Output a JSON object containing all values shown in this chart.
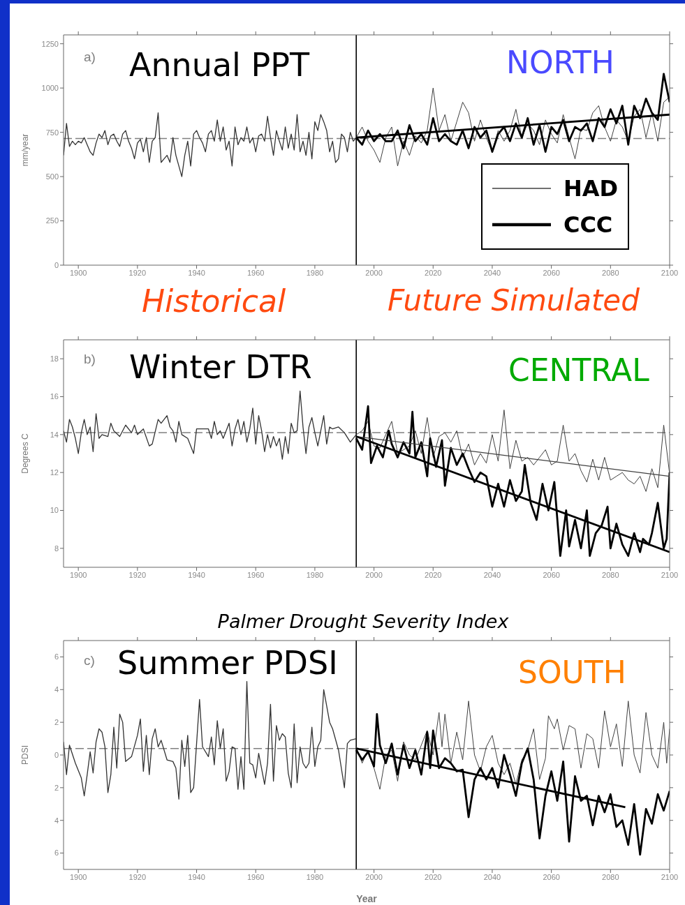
{
  "chart_data": [
    {
      "type": "line",
      "title": "Annual PPT",
      "ylabel": "mm/year",
      "annotations": [
        "a)",
        "NORTH",
        "Historical",
        "Future Simulated"
      ],
      "xlim": [
        1895,
        2100
      ],
      "xticks": [
        1900,
        1920,
        1940,
        1960,
        1980,
        2000,
        2020,
        2040,
        2060,
        2080,
        2100
      ],
      "ylim": [
        0,
        1300
      ],
      "yticks": [
        0,
        250,
        500,
        750,
        1000,
        1250
      ],
      "legend": "bottom right",
      "ref_lines": [
        {
          "axis": "y",
          "value": 715,
          "color": "#808080",
          "line_style": "dashed"
        },
        {
          "axis": "x",
          "value": 1994,
          "color": "#000000",
          "line_style": "solid"
        }
      ],
      "x": [
        1994,
        1996,
        1998,
        2000,
        2002,
        2004,
        2006,
        2008,
        2010,
        2012,
        2014,
        2016,
        2018,
        2020,
        2022,
        2024,
        2026,
        2028,
        2030,
        2032,
        2034,
        2036,
        2038,
        2040,
        2042,
        2044,
        2046,
        2048,
        2050,
        2052,
        2054,
        2056,
        2058,
        2060,
        2062,
        2064,
        2066,
        2068,
        2070,
        2072,
        2074,
        2076,
        2078,
        2080,
        2082,
        2084,
        2086,
        2088,
        2090,
        2092,
        2094,
        2096,
        2098,
        2100
      ],
      "series": [
        {
          "color": "#333333",
          "x": [
            1895,
            1896,
            1897,
            1898,
            1899,
            1900,
            1901,
            1902,
            1903,
            1904,
            1905,
            1906,
            1907,
            1908,
            1909,
            1910,
            1911,
            1912,
            1913,
            1914,
            1915,
            1916,
            1917,
            1918,
            1919,
            1920,
            1921,
            1922,
            1923,
            1924,
            1925,
            1926,
            1927,
            1928,
            1929,
            1930,
            1931,
            1932,
            1933,
            1934,
            1935,
            1936,
            1937,
            1938,
            1939,
            1940,
            1941,
            1942,
            1943,
            1944,
            1945,
            1946,
            1947,
            1948,
            1949,
            1950,
            1951,
            1952,
            1953,
            1954,
            1955,
            1956,
            1957,
            1958,
            1959,
            1960,
            1961,
            1962,
            1963,
            1964,
            1965,
            1966,
            1967,
            1968,
            1969,
            1970,
            1971,
            1972,
            1973,
            1974,
            1975,
            1976,
            1977,
            1978,
            1979,
            1980,
            1981,
            1982,
            1983,
            1984,
            1985,
            1986,
            1987,
            1988,
            1989,
            1990,
            1991,
            1992,
            1993,
            1994
          ],
          "values": [
            620,
            800,
            670,
            700,
            680,
            700,
            690,
            720,
            680,
            640,
            620,
            690,
            740,
            720,
            760,
            680,
            730,
            740,
            700,
            670,
            740,
            760,
            700,
            660,
            600,
            690,
            710,
            640,
            720,
            580,
            700,
            720,
            860,
            580,
            600,
            620,
            580,
            720,
            620,
            560,
            500,
            620,
            700,
            560,
            740,
            760,
            720,
            690,
            640,
            740,
            760,
            700,
            820,
            700,
            780,
            650,
            700,
            560,
            780,
            680,
            720,
            700,
            780,
            690,
            720,
            640,
            730,
            740,
            700,
            840,
            720,
            620,
            760,
            700,
            650,
            780,
            660,
            740,
            650,
            850,
            640,
            700,
            620,
            750,
            600,
            810,
            760,
            850,
            810,
            760,
            640,
            700,
            580,
            600,
            740,
            720,
            640,
            750,
            700,
            720
          ]
        },
        {
          "name": "HAD",
          "color": "#404040",
          "values": [
            720,
            780,
            700,
            650,
            580,
            720,
            780,
            560,
            700,
            620,
            730,
            690,
            760,
            1000,
            760,
            850,
            700,
            810,
            920,
            860,
            700,
            820,
            720,
            640,
            760,
            700,
            760,
            880,
            720,
            800,
            760,
            680,
            820,
            740,
            690,
            850,
            720,
            600,
            770,
            760,
            860,
            900,
            780,
            700,
            820,
            780,
            700,
            840,
            880,
            720,
            860,
            700,
            920,
            950
          ]
        },
        {
          "name": "CCC",
          "color": "#000000",
          "values": [
            720,
            680,
            760,
            700,
            740,
            700,
            700,
            760,
            660,
            790,
            700,
            740,
            680,
            830,
            700,
            740,
            700,
            680,
            760,
            660,
            780,
            720,
            760,
            640,
            740,
            780,
            700,
            800,
            720,
            830,
            680,
            790,
            640,
            780,
            740,
            820,
            700,
            780,
            760,
            800,
            700,
            830,
            780,
            880,
            800,
            900,
            680,
            900,
            830,
            940,
            860,
            820,
            1080,
            920
          ]
        },
        {
          "color": "#000000",
          "x": [
            1994,
            2100
          ],
          "values": [
            720,
            850
          ]
        }
      ]
    },
    {
      "type": "line",
      "title": "Winter DTR",
      "ylabel": "Degrees C",
      "annotations": [
        "b)",
        "CENTRAL"
      ],
      "xlim": [
        1895,
        2100
      ],
      "xticks": [
        1900,
        1920,
        1940,
        1960,
        1980,
        2000,
        2020,
        2040,
        2060,
        2080,
        2100
      ],
      "ylim": [
        7,
        19
      ],
      "yticks": [
        8,
        10,
        12,
        14,
        16,
        18
      ],
      "ref_lines": [
        {
          "axis": "y",
          "value": 14.1,
          "color": "#808080",
          "line_style": "dashed"
        },
        {
          "axis": "x",
          "value": 1994,
          "color": "#000000",
          "line_style": "solid"
        }
      ],
      "x": [
        1994,
        1996,
        1998,
        2000,
        2002,
        2004,
        2006,
        2008,
        2010,
        2012,
        2014,
        2016,
        2018,
        2020,
        2022,
        2024,
        2026,
        2028,
        2030,
        2032,
        2034,
        2036,
        2038,
        2040,
        2042,
        2044,
        2046,
        2048,
        2050,
        2052,
        2054,
        2056,
        2058,
        2060,
        2062,
        2064,
        2066,
        2068,
        2070,
        2072,
        2074,
        2076,
        2078,
        2080,
        2082,
        2084,
        2086,
        2088,
        2090,
        2092,
        2094,
        2096,
        2098,
        2100
      ],
      "series": [
        {
          "color": "#333333",
          "x": [
            1895,
            1896,
            1897,
            1898,
            1899,
            1900,
            1901,
            1902,
            1903,
            1904,
            1905,
            1906,
            1907,
            1908,
            1910,
            1911,
            1912,
            1914,
            1916,
            1918,
            1919,
            1920,
            1922,
            1924,
            1925,
            1927,
            1928,
            1930,
            1931,
            1932,
            1933,
            1934,
            1935,
            1937,
            1939,
            1940,
            1942,
            1944,
            1945,
            1946,
            1947,
            1948,
            1949,
            1950,
            1951,
            1952,
            1953,
            1954,
            1955,
            1956,
            1957,
            1958,
            1959,
            1960,
            1961,
            1962,
            1963,
            1964,
            1965,
            1966,
            1967,
            1968,
            1969,
            1970,
            1971,
            1972,
            1973,
            1974,
            1975,
            1976,
            1977,
            1978,
            1979,
            1980,
            1981,
            1982,
            1983,
            1984,
            1985,
            1986,
            1988,
            1990,
            1992,
            1994
          ],
          "values": [
            14.2,
            13.6,
            14.8,
            14.4,
            13.8,
            13.0,
            14.1,
            14.8,
            14.0,
            14.4,
            13.1,
            15.1,
            13.8,
            14.0,
            13.9,
            14.6,
            14.2,
            13.9,
            14.5,
            14.1,
            14.5,
            14.0,
            14.3,
            13.4,
            13.5,
            14.8,
            14.6,
            15.0,
            14.4,
            14.2,
            13.6,
            14.7,
            14.0,
            13.8,
            13.0,
            14.3,
            14.3,
            14.3,
            13.8,
            14.7,
            14.0,
            14.2,
            13.8,
            14.2,
            14.6,
            13.4,
            14.3,
            14.8,
            14.0,
            14.7,
            13.6,
            14.3,
            15.4,
            13.5,
            15.0,
            14.2,
            13.1,
            14.0,
            13.3,
            13.9,
            13.4,
            13.8,
            12.7,
            13.9,
            13.0,
            14.6,
            14.1,
            14.2,
            16.3,
            14.4,
            13.0,
            14.4,
            14.9,
            14.1,
            13.4,
            14.2,
            15.0,
            13.5,
            14.4,
            14.3,
            14.4,
            14.1,
            13.6,
            14.0
          ]
        },
        {
          "color": "#404040",
          "values": [
            14.0,
            14.2,
            14.7,
            13.4,
            13.3,
            14.0,
            14.7,
            13.0,
            13.2,
            13.4,
            14.2,
            13.0,
            14.9,
            12.8,
            13.9,
            14.1,
            13.6,
            14.2,
            12.8,
            13.5,
            12.4,
            13.0,
            12.5,
            14.0,
            12.6,
            15.3,
            12.2,
            13.7,
            12.6,
            12.8,
            12.4,
            12.8,
            13.2,
            12.4,
            12.6,
            14.5,
            12.6,
            13.0,
            12.1,
            11.5,
            12.7,
            11.6,
            12.8,
            11.6,
            11.8,
            12.0,
            11.6,
            11.4,
            11.8,
            11.0,
            12.2,
            11.2,
            14.5,
            11.9
          ]
        },
        {
          "color": "#000000",
          "x": [
            1994,
            1996,
            1998,
            1999,
            2001,
            2003,
            2005,
            2006,
            2008,
            2010,
            2012,
            2013,
            2014,
            2016,
            2018,
            2019,
            2021,
            2023,
            2024,
            2026,
            2028,
            2030,
            2032,
            2034,
            2036,
            2038,
            2040,
            2042,
            2044,
            2046,
            2048,
            2050,
            2051,
            2053,
            2055,
            2057,
            2059,
            2061,
            2063,
            2065,
            2066,
            2068,
            2070,
            2072,
            2073,
            2075,
            2077,
            2079,
            2080,
            2082,
            2084,
            2086,
            2088,
            2090,
            2091,
            2093,
            2094,
            2096,
            2098,
            2099,
            2100
          ],
          "values": [
            13.8,
            13.2,
            15.5,
            12.5,
            13.4,
            12.8,
            14.2,
            13.5,
            12.8,
            13.6,
            13.0,
            15.2,
            12.8,
            13.6,
            11.8,
            13.8,
            12.3,
            13.7,
            11.3,
            13.3,
            12.4,
            13.0,
            12.2,
            11.5,
            12.0,
            11.8,
            10.2,
            11.4,
            10.2,
            11.6,
            10.5,
            11.0,
            12.4,
            10.4,
            9.5,
            11.4,
            10.0,
            11.5,
            7.6,
            10.0,
            8.1,
            9.5,
            8.0,
            10.0,
            7.6,
            8.8,
            9.2,
            10.2,
            8.0,
            9.3,
            8.2,
            7.6,
            8.8,
            7.8,
            8.5,
            8.2,
            8.8,
            10.4,
            8.0,
            8.5,
            12.0
          ]
        },
        {
          "color": "#404040",
          "x": [
            1994,
            2100
          ],
          "values": [
            13.9,
            11.8
          ]
        },
        {
          "color": "#000000",
          "x": [
            1994,
            2100
          ],
          "values": [
            13.9,
            7.8
          ]
        }
      ]
    },
    {
      "type": "line",
      "title": "Summer PDSI",
      "subtitle": "Palmer Drought Severity Index",
      "xlabel": "Year",
      "ylabel": "PDSI",
      "annotations": [
        "c)",
        "SOUTH"
      ],
      "xlim": [
        1895,
        2100
      ],
      "xticks": [
        1900,
        1920,
        1940,
        1960,
        1980,
        2000,
        2020,
        2040,
        2060,
        2080,
        2100
      ],
      "ylim": [
        -7,
        7
      ],
      "yticks": [
        {
          "value": -6,
          "label": "6"
        },
        {
          "value": -4,
          "label": "4"
        },
        {
          "value": -2,
          "label": "2"
        },
        0,
        2,
        4,
        6
      ],
      "ref_lines": [
        {
          "axis": "y",
          "value": 0.4,
          "color": "#808080",
          "line_style": "dashed"
        },
        {
          "axis": "x",
          "value": 1994,
          "color": "#000000",
          "line_style": "solid"
        }
      ],
      "series": [
        {
          "color": "#333333",
          "x": [
            1895,
            1896,
            1897,
            1899,
            1901,
            1902,
            1903,
            1904,
            1905,
            1906,
            1907,
            1908,
            1909,
            1910,
            1911,
            1912,
            1913,
            1914,
            1915,
            1916,
            1918,
            1920,
            1921,
            1922,
            1923,
            1924,
            1925,
            1926,
            1927,
            1928,
            1930,
            1932,
            1933,
            1934,
            1935,
            1936,
            1937,
            1938,
            1939,
            1941,
            1942,
            1944,
            1945,
            1946,
            1947,
            1948,
            1949,
            1950,
            1951,
            1952,
            1953,
            1954,
            1955,
            1956,
            1957,
            1958,
            1959,
            1960,
            1961,
            1963,
            1964,
            1965,
            1966,
            1967,
            1968,
            1969,
            1970,
            1971,
            1972,
            1973,
            1974,
            1975,
            1976,
            1977,
            1978,
            1979,
            1980,
            1981,
            1982,
            1983,
            1984,
            1985,
            1986,
            1988,
            1990,
            1991,
            1992,
            1994
          ],
          "values": [
            0.8,
            -1.2,
            0.6,
            -0.5,
            -1.4,
            -2.5,
            -1.2,
            0.2,
            -1.1,
            0.8,
            1.6,
            1.4,
            0.5,
            -2.3,
            -1.2,
            1.7,
            -0.8,
            2.5,
            2.0,
            -0.4,
            -0.1,
            1.2,
            2.2,
            -1.0,
            1.2,
            -1.2,
            1.0,
            1.6,
            0.5,
            0.9,
            -0.3,
            -0.4,
            -0.8,
            -2.7,
            0.9,
            -0.7,
            1.2,
            -2.3,
            -2.0,
            3.4,
            0.5,
            -0.1,
            1.1,
            -0.6,
            2.1,
            0.4,
            1.6,
            -1.6,
            -1.0,
            0.5,
            0.4,
            -2.1,
            -0.1,
            -2.1,
            4.5,
            -0.5,
            -0.6,
            -1.4,
            0.1,
            -1.8,
            -0.5,
            3.1,
            -1.6,
            1.8,
            0.9,
            1.3,
            1.1,
            -1.1,
            -2.0,
            1.9,
            -1.7,
            0.5,
            -0.5,
            -0.8,
            -0.5,
            1.7,
            -0.7,
            0.5,
            0.9,
            4.0,
            3.0,
            2.0,
            1.6,
            0.3,
            -2.0,
            0.7,
            0.9,
            1.0
          ]
        },
        {
          "color": "#404040",
          "x": [
            1994,
            1996,
            1998,
            2000,
            2002,
            2004,
            2006,
            2008,
            2010,
            2012,
            2014,
            2016,
            2018,
            2020,
            2022,
            2023,
            2024,
            2026,
            2028,
            2030,
            2032,
            2034,
            2036,
            2038,
            2040,
            2042,
            2044,
            2046,
            2048,
            2050,
            2052,
            2054,
            2056,
            2058,
            2059,
            2061,
            2062,
            2064,
            2066,
            2068,
            2070,
            2072,
            2074,
            2076,
            2078,
            2080,
            2082,
            2084,
            2086,
            2088,
            2090,
            2092,
            2094,
            2096,
            2098,
            2099,
            2100
          ],
          "values": [
            0.5,
            -0.5,
            0.3,
            -0.8,
            -2.1,
            0.0,
            0.3,
            -1.6,
            0.8,
            0.0,
            -0.3,
            0.6,
            1.5,
            0.0,
            2.6,
            0.5,
            2.5,
            -0.5,
            1.4,
            -0.3,
            3.3,
            0.0,
            -1.0,
            0.5,
            1.2,
            -0.5,
            -1.2,
            -0.5,
            -1.8,
            -0.3,
            0.3,
            1.6,
            -1.5,
            -0.2,
            2.4,
            1.6,
            2.2,
            0.3,
            1.8,
            1.6,
            -0.8,
            1.3,
            1.0,
            -0.8,
            2.7,
            0.5,
            1.9,
            -0.7,
            3.3,
            0.0,
            -1.1,
            2.6,
            0.0,
            -0.8,
            2.0,
            -0.5,
            1.6
          ]
        },
        {
          "color": "#000000",
          "x": [
            1994,
            1996,
            1998,
            2000,
            2001,
            2002,
            2004,
            2006,
            2008,
            2010,
            2012,
            2014,
            2016,
            2018,
            2019,
            2020,
            2022,
            2024,
            2026,
            2028,
            2030,
            2032,
            2034,
            2036,
            2038,
            2040,
            2042,
            2044,
            2046,
            2048,
            2050,
            2052,
            2054,
            2056,
            2058,
            2060,
            2062,
            2064,
            2066,
            2068,
            2070,
            2072,
            2074,
            2076,
            2078,
            2080,
            2082,
            2084,
            2086,
            2088,
            2090,
            2092,
            2094,
            2096,
            2098,
            2100
          ],
          "values": [
            0.3,
            -0.3,
            0.2,
            -0.7,
            2.5,
            0.6,
            -0.5,
            0.7,
            -1.2,
            0.6,
            -0.8,
            0.3,
            -1.2,
            1.4,
            -0.8,
            1.5,
            -0.8,
            -0.2,
            -0.5,
            -1.0,
            -0.9,
            -3.8,
            -1.5,
            -0.8,
            -1.5,
            -0.8,
            -2.0,
            0.0,
            -1.2,
            -2.5,
            -0.5,
            0.4,
            -1.5,
            -5.1,
            -2.5,
            -1.0,
            -2.8,
            -0.4,
            -5.3,
            -1.3,
            -2.8,
            -2.5,
            -4.3,
            -2.5,
            -3.5,
            -2.4,
            -4.4,
            -4.0,
            -5.5,
            -3.0,
            -6.1,
            -3.3,
            -4.2,
            -2.4,
            -3.4,
            -2.2
          ]
        },
        {
          "color": "#000000",
          "x": [
            1994,
            2085
          ],
          "values": [
            0.4,
            -3.2
          ]
        }
      ]
    }
  ]
}
